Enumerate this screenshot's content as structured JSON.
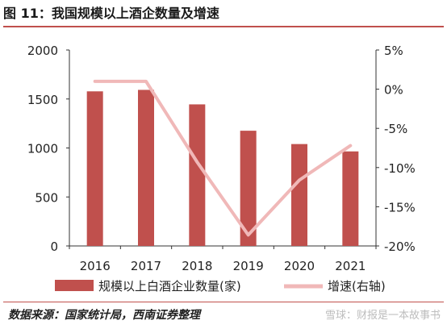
{
  "title": "图 11：我国规模以上酒企数量及增速",
  "source": "数据来源：国家统计局，西南证券整理",
  "watermark": "雪球：财报是一本故事书",
  "colors": {
    "bar": "#c0504d",
    "line": "#f0b8b8",
    "accent": "#c0504d"
  },
  "chart_data": {
    "type": "bar",
    "categories": [
      "2016",
      "2017",
      "2018",
      "2019",
      "2020",
      "2021"
    ],
    "series": [
      {
        "name": "规模以上白酒企业数量(家)",
        "type": "bar",
        "axis": "left",
        "values": [
          1578,
          1593,
          1445,
          1176,
          1040,
          965
        ]
      },
      {
        "name": "增速(右轴)",
        "type": "line",
        "axis": "right",
        "values": [
          1.0,
          1.0,
          -9.3,
          -18.6,
          -11.6,
          -7.2
        ]
      }
    ],
    "left_axis": {
      "min": 0,
      "max": 2000,
      "ticks": [
        "0",
        "500",
        "1000",
        "1500",
        "2000"
      ]
    },
    "right_axis": {
      "min": -20,
      "max": 5,
      "ticks": [
        "-20%",
        "-15%",
        "-10%",
        "-5%",
        "0%",
        "5%"
      ]
    },
    "legend_position": "bottom",
    "grid": false
  }
}
